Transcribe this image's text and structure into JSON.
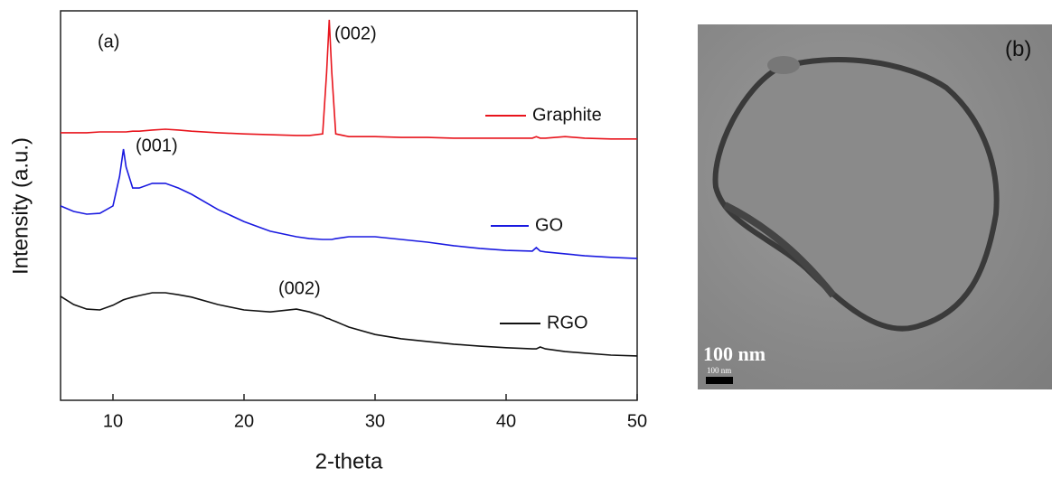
{
  "chart_data": {
    "type": "line",
    "xlabel": "2-theta",
    "ylabel": "Intensity (a.u.)",
    "x": [
      6,
      7,
      8,
      9,
      10,
      10.5,
      10.8,
      11,
      11.5,
      12,
      13,
      14,
      15,
      16,
      18,
      20,
      22,
      24,
      25,
      26,
      26.3,
      26.5,
      26.7,
      27,
      28,
      30,
      32,
      34,
      36,
      38,
      40,
      42,
      42.3,
      42.6,
      43,
      44.5,
      46,
      48,
      50
    ],
    "series": [
      {
        "name": "Graphite",
        "color": "#e8141c",
        "values": [
          68.7,
          68.7,
          68.7,
          68.9,
          68.9,
          68.9,
          68.9,
          68.9,
          69.1,
          69.1,
          69.4,
          69.6,
          69.4,
          69.1,
          68.7,
          68.4,
          68.2,
          68.0,
          68.0,
          68.4,
          84.2,
          97.7,
          84.2,
          68.4,
          67.7,
          67.7,
          67.5,
          67.5,
          67.3,
          67.3,
          67.3,
          67.3,
          67.7,
          67.3,
          67.3,
          67.7,
          67.3,
          67.1,
          67.1
        ]
      },
      {
        "name": "GO",
        "color": "#1a1ae0",
        "values": [
          49.9,
          48.5,
          47.8,
          48.0,
          49.9,
          57.5,
          64.5,
          59.9,
          54.5,
          54.5,
          55.7,
          55.7,
          54.5,
          52.9,
          49.0,
          45.9,
          43.4,
          42.0,
          41.5,
          41.3,
          41.3,
          41.3,
          41.3,
          41.5,
          42.0,
          42.0,
          41.3,
          40.6,
          39.7,
          39.0,
          38.5,
          38.3,
          39.2,
          38.3,
          38.1,
          37.6,
          37.1,
          36.7,
          36.4
        ]
      },
      {
        "name": "RGO",
        "color": "#111111",
        "values": [
          26.7,
          24.6,
          23.4,
          23.2,
          24.4,
          25.3,
          25.8,
          26.0,
          26.5,
          26.9,
          27.6,
          27.6,
          27.1,
          26.5,
          24.6,
          23.2,
          22.7,
          23.4,
          22.7,
          21.6,
          21.1,
          20.9,
          20.6,
          20.2,
          18.8,
          16.9,
          15.8,
          15.1,
          14.4,
          13.9,
          13.5,
          13.2,
          13.2,
          13.7,
          13.2,
          12.5,
          12.1,
          11.6,
          11.4
        ]
      }
    ],
    "xlim": [
      6,
      50
    ],
    "xticks": [
      10,
      20,
      30,
      40,
      50
    ],
    "ylim": [
      0,
      100
    ],
    "annotations": [
      "(a)",
      "(002)",
      "(001)",
      "(002)"
    ]
  },
  "image": {
    "label": "(b)",
    "scale_label": "100 nm",
    "scale_label_small": "100 nm"
  }
}
